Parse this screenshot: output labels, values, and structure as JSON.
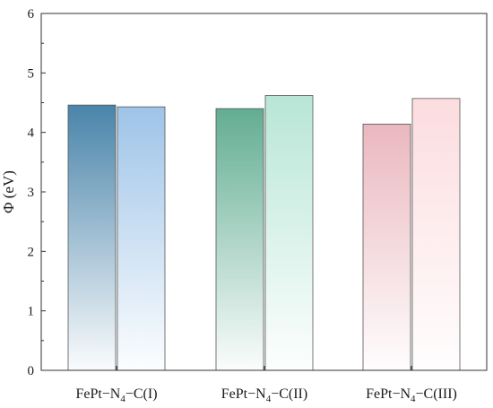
{
  "chart_data": {
    "type": "bar",
    "ylabel": "Φ (eV)",
    "ylim": [
      0,
      6
    ],
    "yticks": [
      "0",
      "1",
      "2",
      "3",
      "4",
      "5",
      "6"
    ],
    "grid": false,
    "categories": [
      {
        "prefix": "FePt−N",
        "sub": "4",
        "suffix": "−C(I)"
      },
      {
        "prefix": "FePt−N",
        "sub": "4",
        "suffix": "−C(II)"
      },
      {
        "prefix": "FePt−N",
        "sub": "4",
        "suffix": "−C(III)"
      }
    ],
    "series": [
      {
        "values": [
          4.46,
          4.4,
          4.14
        ]
      },
      {
        "values": [
          4.43,
          4.62,
          4.57
        ]
      }
    ],
    "colors": [
      [
        "#4a84aa",
        "#9ec4e8"
      ],
      [
        "#62ad92",
        "#b8e6d6"
      ],
      [
        "#eab8bf",
        "#fcdcdf"
      ]
    ]
  }
}
